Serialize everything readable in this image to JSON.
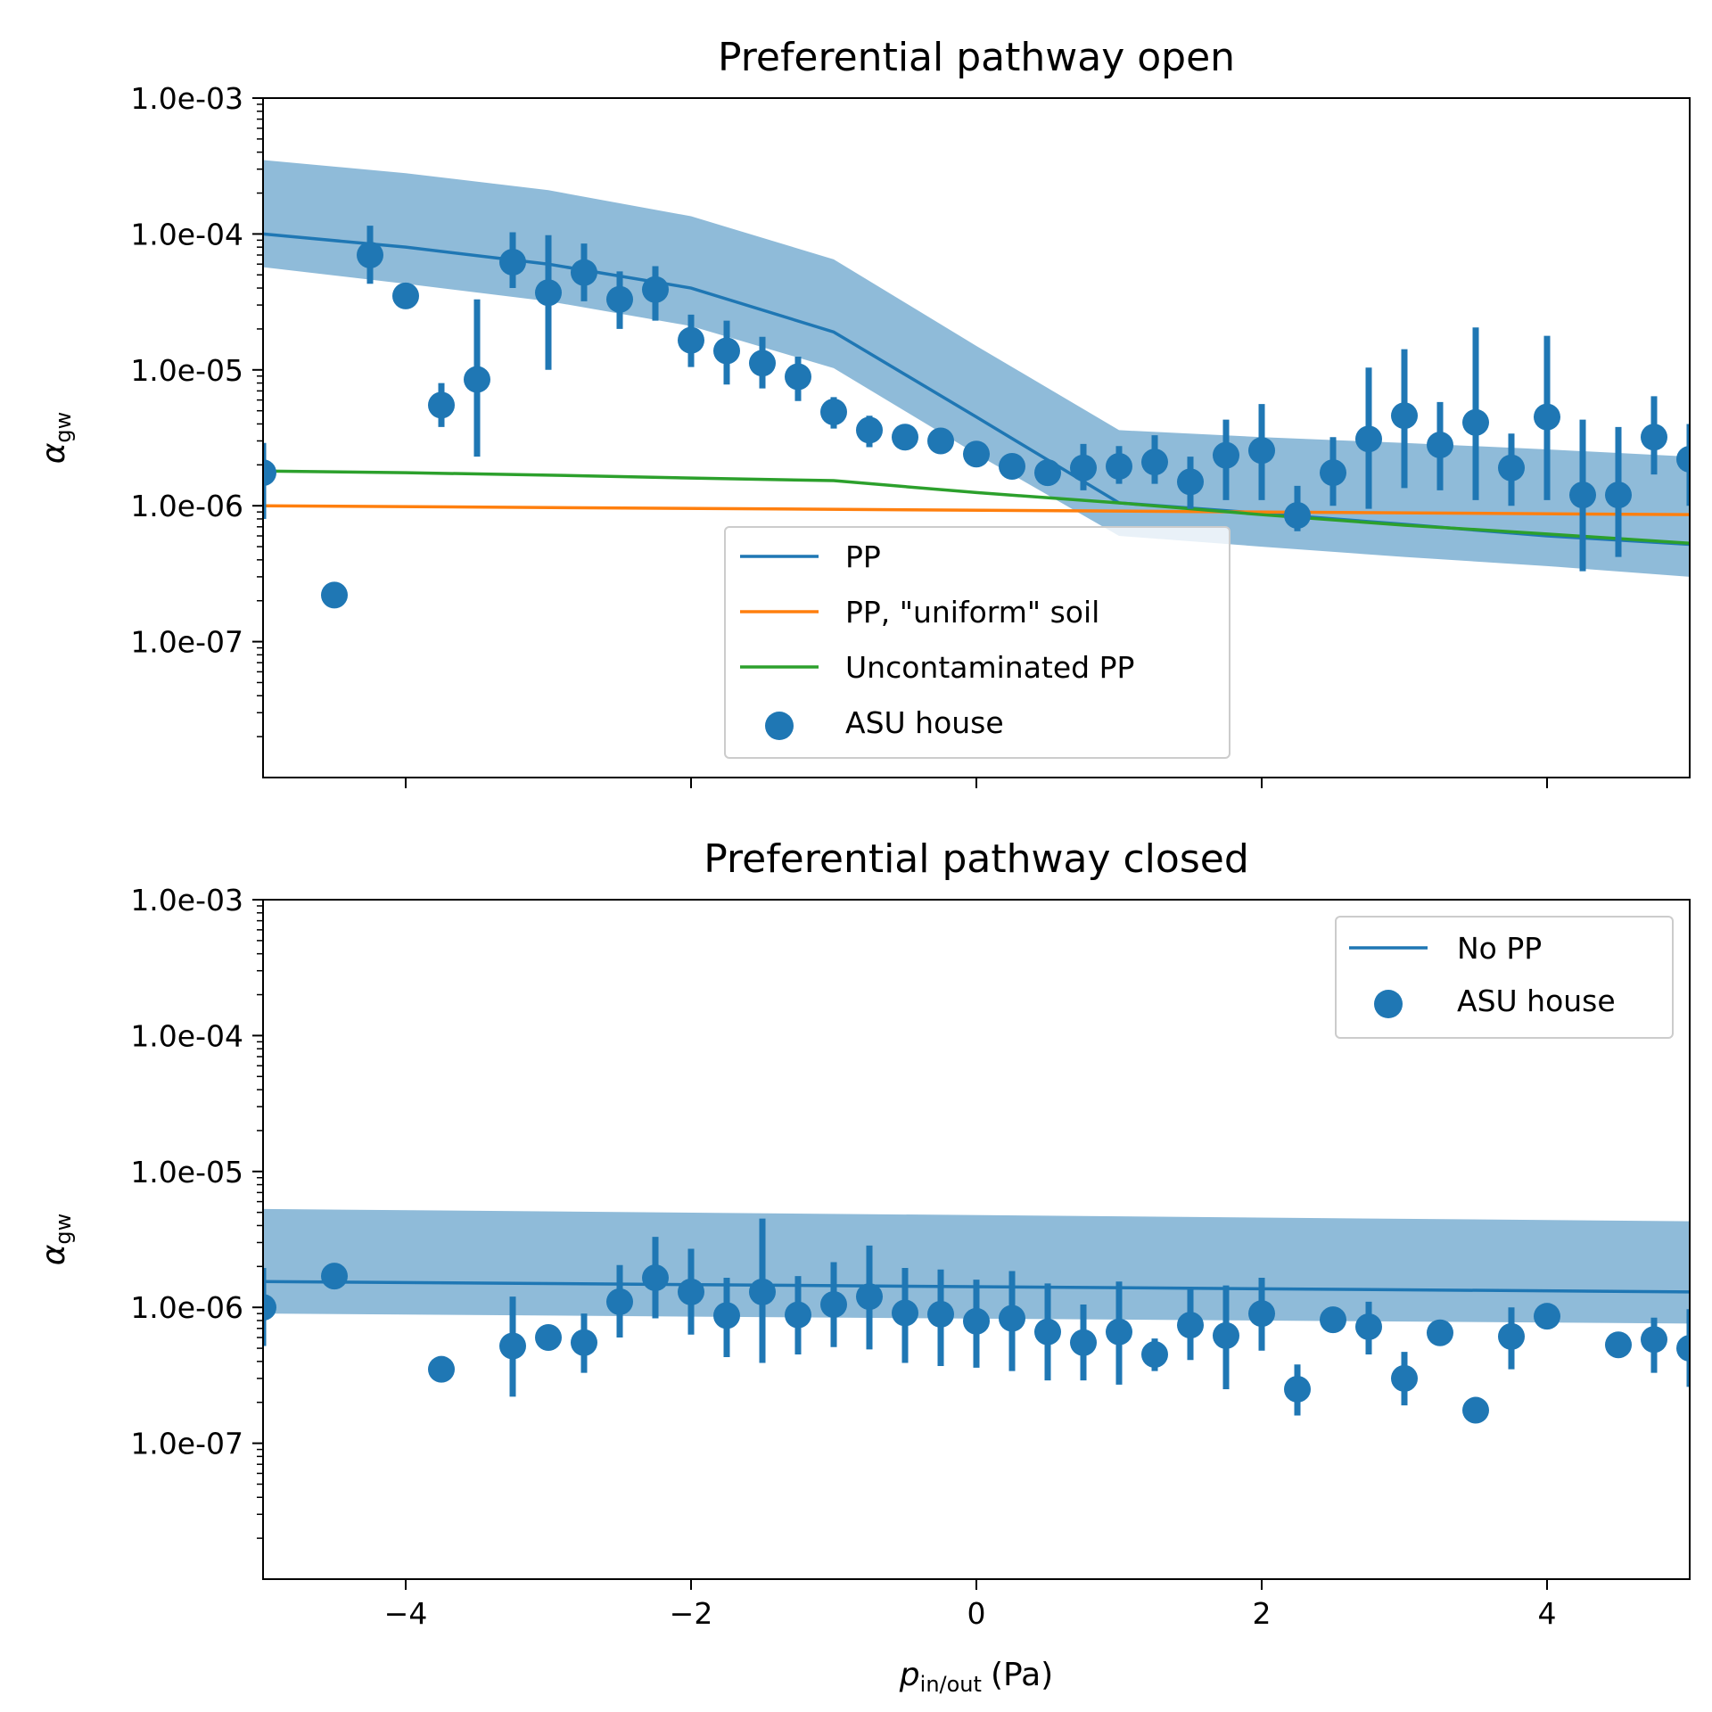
{
  "colors": {
    "blue": "#1f77b4",
    "orange": "#ff7f0e",
    "green": "#2ca02c",
    "band": "#1f77b4"
  },
  "chart_data": [
    {
      "type": "line",
      "title": "Preferential pathway open",
      "ylabel": "α",
      "ylabel_sub": "gw",
      "yscale": "log",
      "ylim": [
        1e-08,
        0.001
      ],
      "xlim": [
        -5,
        5
      ],
      "xticks": [
        -4,
        -2,
        0,
        2,
        4
      ],
      "xtick_labels": [
        "",
        "",
        "",
        "",
        ""
      ],
      "yticks": [
        0.001,
        0.0001,
        1e-05,
        1e-06,
        1e-07
      ],
      "ytick_labels": [
        "1.0e-03",
        "1.0e-04",
        "1.0e-05",
        "1.0e-06",
        "1.0e-07"
      ],
      "grid": false,
      "legend": {
        "position": "lower-center",
        "entries": [
          "PP",
          "PP, \"uniform\" soil",
          "Uncontaminated PP",
          "ASU house"
        ]
      },
      "band": {
        "x": [
          -5,
          -4,
          -3,
          -2,
          -1,
          0,
          1,
          2,
          3,
          4,
          5
        ],
        "upper": [
          0.00035,
          0.00028,
          0.00021,
          0.000135,
          6.5e-05,
          1.5e-05,
          3.6e-06,
          3.2e-06,
          2.9e-06,
          2.6e-06,
          2.3e-06
        ],
        "lower": [
          5.7e-05,
          4.3e-05,
          3.2e-05,
          2.1e-05,
          1.03e-05,
          2.4e-06,
          6e-07,
          5e-07,
          4.2e-07,
          3.6e-07,
          3e-07
        ]
      },
      "series": [
        {
          "name": "PP",
          "kind": "line",
          "color": "blue",
          "x": [
            -5,
            -4,
            -3,
            -2,
            -1,
            0,
            1,
            2,
            3,
            4,
            5
          ],
          "y": [
            0.0001,
            8e-05,
            6e-05,
            4e-05,
            1.9e-05,
            4.5e-06,
            1.05e-06,
            8.8e-07,
            7.3e-07,
            6e-07,
            5.2e-07
          ]
        },
        {
          "name": "PP, \"uniform\" soil",
          "kind": "line",
          "color": "orange",
          "x": [
            -5,
            5
          ],
          "y": [
            1e-06,
            8.6e-07
          ]
        },
        {
          "name": "Uncontaminated PP",
          "kind": "line",
          "color": "green",
          "x": [
            -5,
            -4,
            -3,
            -2,
            -1,
            0,
            1,
            2,
            3,
            4,
            5
          ],
          "y": [
            1.8e-06,
            1.75e-06,
            1.68e-06,
            1.6e-06,
            1.53e-06,
            1.25e-06,
            1.05e-06,
            8.6e-07,
            7.2e-07,
            6.2e-07,
            5.3e-07
          ]
        },
        {
          "name": "ASU house",
          "kind": "errorbar-scatter",
          "color": "blue",
          "x": [
            -5.0,
            -4.5,
            -4.25,
            -4.0,
            -3.75,
            -3.5,
            -3.25,
            -3.0,
            -2.75,
            -2.5,
            -2.25,
            -2.0,
            -1.75,
            -1.5,
            -1.25,
            -1.0,
            -0.75,
            -0.5,
            -0.25,
            0.0,
            0.25,
            0.5,
            0.75,
            1.0,
            1.25,
            1.5,
            1.75,
            2.0,
            2.25,
            2.5,
            2.75,
            3.0,
            3.25,
            3.5,
            3.75,
            4.0,
            4.25,
            4.5,
            4.75,
            5.0
          ],
          "y": [
            1.75e-06,
            2.2e-07,
            7e-05,
            3.5e-05,
            5.5e-06,
            8.5e-06,
            6.2e-05,
            3.7e-05,
            5.2e-05,
            3.3e-05,
            3.9e-05,
            1.65e-05,
            1.38e-05,
            1.12e-05,
            8.9e-06,
            4.9e-06,
            3.6e-06,
            3.2e-06,
            3e-06,
            2.4e-06,
            1.95e-06,
            1.75e-06,
            1.9e-06,
            1.95e-06,
            2.1e-06,
            1.5e-06,
            2.35e-06,
            2.55e-06,
            8.5e-07,
            1.75e-06,
            3.1e-06,
            4.6e-06,
            2.8e-06,
            4.1e-06,
            1.9e-06,
            4.5e-06,
            1.2e-06,
            1.2e-06,
            3.2e-06,
            2.2e-06
          ],
          "err_low": [
            8e-07,
            null,
            4.3e-05,
            null,
            3.8e-06,
            2.3e-06,
            4e-05,
            1e-05,
            3.2e-05,
            2e-05,
            2.3e-05,
            1.05e-05,
            7.8e-06,
            7.3e-06,
            5.9e-06,
            3.7e-06,
            2.7e-06,
            null,
            null,
            null,
            null,
            null,
            1.3e-06,
            1.45e-06,
            1.45e-06,
            9.5e-07,
            1.1e-06,
            1.1e-06,
            6.5e-07,
            1e-06,
            9.5e-07,
            1.35e-06,
            1.3e-06,
            1.1e-06,
            1e-06,
            1.1e-06,
            3.3e-07,
            4.2e-07,
            1.7e-06,
            1e-06
          ],
          "err_high": [
            2.9e-06,
            null,
            0.000115,
            null,
            8e-06,
            3.3e-05,
            0.000103,
            9.8e-05,
            8.5e-05,
            5.3e-05,
            5.8e-05,
            2.55e-05,
            2.3e-05,
            1.75e-05,
            1.25e-05,
            6.3e-06,
            4.6e-06,
            null,
            null,
            null,
            null,
            null,
            2.85e-06,
            2.75e-06,
            3.3e-06,
            2.3e-06,
            4.3e-06,
            5.6e-06,
            1.4e-06,
            3.2e-06,
            1.04e-05,
            1.42e-05,
            5.8e-06,
            2.05e-05,
            3.4e-06,
            1.78e-05,
            4.3e-06,
            3.8e-06,
            6.4e-06,
            4e-06
          ]
        }
      ]
    },
    {
      "type": "line",
      "title": "Preferential pathway closed",
      "ylabel": "α",
      "ylabel_sub": "gw",
      "xlabel": "p",
      "xlabel_sub": "in/out",
      "xlabel_unit": "(Pa)",
      "yscale": "log",
      "ylim": [
        1e-08,
        0.001
      ],
      "xlim": [
        -5,
        5
      ],
      "xticks": [
        -4,
        -2,
        0,
        2,
        4
      ],
      "xtick_labels": [
        "−4",
        "−2",
        "0",
        "2",
        "4"
      ],
      "yticks": [
        0.001,
        0.0001,
        1e-05,
        1e-06,
        1e-07
      ],
      "ytick_labels": [
        "1.0e-03",
        "1.0e-04",
        "1.0e-05",
        "1.0e-06",
        "1.0e-07"
      ],
      "grid": false,
      "legend": {
        "position": "top-right",
        "entries": [
          "No PP",
          "ASU house"
        ]
      },
      "band": {
        "x": [
          -5,
          5
        ],
        "upper": [
          5.3e-06,
          4.3e-06
        ],
        "lower": [
          9e-07,
          7.6e-07
        ]
      },
      "series": [
        {
          "name": "No PP",
          "kind": "line",
          "color": "blue",
          "x": [
            -5,
            5
          ],
          "y": [
            1.55e-06,
            1.3e-06
          ]
        },
        {
          "name": "ASU house",
          "kind": "errorbar-scatter",
          "color": "blue",
          "x": [
            -5.0,
            -4.5,
            -3.75,
            -3.25,
            -3.0,
            -2.75,
            -2.5,
            -2.25,
            -2.0,
            -1.75,
            -1.5,
            -1.25,
            -1.0,
            -0.75,
            -0.5,
            -0.25,
            0.0,
            0.25,
            0.5,
            0.75,
            1.0,
            1.25,
            1.5,
            1.75,
            2.0,
            2.25,
            2.5,
            2.75,
            3.0,
            3.25,
            3.5,
            3.75,
            4.0,
            4.5,
            4.75,
            5.0
          ],
          "y": [
            1e-06,
            1.7e-06,
            3.5e-07,
            5.2e-07,
            6e-07,
            5.5e-07,
            1.1e-06,
            1.65e-06,
            1.3e-06,
            8.7e-07,
            1.3e-06,
            8.8e-07,
            1.05e-06,
            1.2e-06,
            9.1e-07,
            8.9e-07,
            7.9e-07,
            8.3e-07,
            6.6e-07,
            5.5e-07,
            6.6e-07,
            4.5e-07,
            7.4e-07,
            6.2e-07,
            9e-07,
            2.5e-07,
            8.1e-07,
            7.2e-07,
            3e-07,
            6.5e-07,
            1.75e-07,
            6.1e-07,
            8.6e-07,
            5.3e-07,
            5.8e-07,
            5e-07
          ],
          "err_low": [
            5.2e-07,
            null,
            null,
            2.2e-07,
            null,
            3.3e-07,
            6e-07,
            8.3e-07,
            6.3e-07,
            4.3e-07,
            3.9e-07,
            4.5e-07,
            5.1e-07,
            4.9e-07,
            3.9e-07,
            3.7e-07,
            3.6e-07,
            3.4e-07,
            2.9e-07,
            2.9e-07,
            2.7e-07,
            3.4e-07,
            4.1e-07,
            2.5e-07,
            4.8e-07,
            1.6e-07,
            null,
            4.5e-07,
            1.9e-07,
            null,
            null,
            3.5e-07,
            null,
            null,
            3.3e-07,
            2.6e-07
          ],
          "err_high": [
            1.95e-06,
            null,
            null,
            1.2e-06,
            null,
            9e-07,
            2.05e-06,
            3.3e-06,
            2.7e-06,
            1.65e-06,
            4.5e-06,
            1.7e-06,
            2.15e-06,
            2.85e-06,
            1.95e-06,
            1.9e-06,
            1.6e-06,
            1.85e-06,
            1.5e-06,
            1.05e-06,
            1.55e-06,
            5.9e-07,
            1.35e-06,
            1.45e-06,
            1.65e-06,
            3.8e-07,
            null,
            1.1e-06,
            4.7e-07,
            null,
            null,
            1e-06,
            null,
            null,
            8.4e-07,
            9.7e-07
          ]
        }
      ]
    }
  ]
}
